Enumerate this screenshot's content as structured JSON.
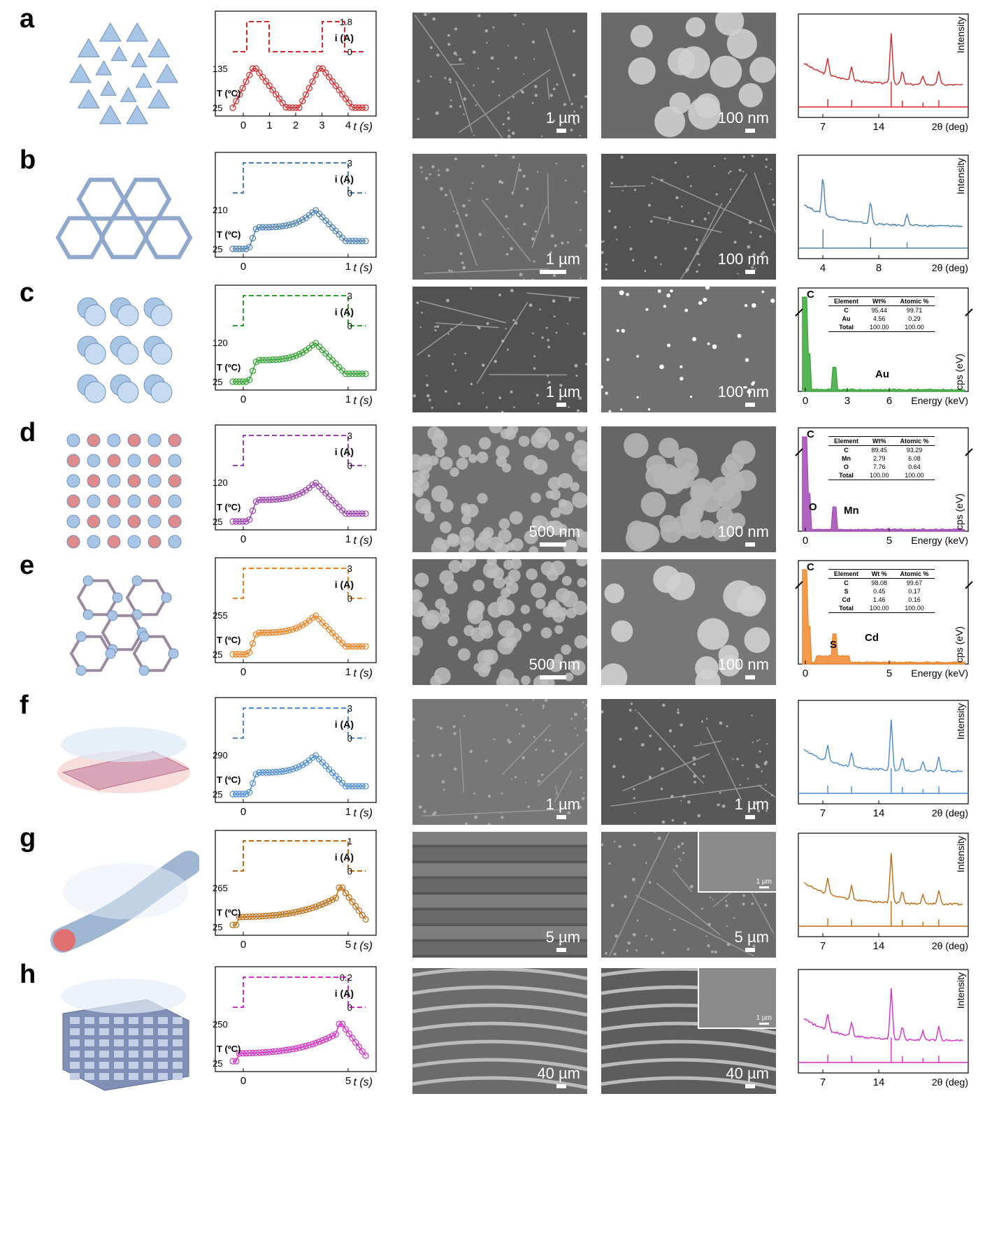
{
  "panels": [
    {
      "letter": "a",
      "color": "#d62728",
      "plot": {
        "i_max": "1.8",
        "i_zero": "0",
        "t_max": "135",
        "t_min": "25",
        "x_ticks": [
          "0",
          "1",
          "2",
          "3",
          "4"
        ],
        "x_label": "t (s)",
        "i_label": "i (A)",
        "t_label": "T (ºC)"
      },
      "sem1": {
        "scale": "1 µm"
      },
      "sem2": {
        "scale": "100 nm"
      },
      "spec": {
        "type": "xrd",
        "y_label": "Intensity",
        "x_ticks": [
          "7",
          "14"
        ],
        "x_label": "2θ (deg)"
      }
    },
    {
      "letter": "b",
      "color": "#4a7fb5",
      "plot": {
        "i_max": "3",
        "i_zero": "0",
        "t_max": "210",
        "t_min": "25",
        "x_ticks": [
          "0",
          "1"
        ],
        "x_label": "t (s)",
        "i_label": "i (A)",
        "t_label": "T (ºC)"
      },
      "sem1": {
        "scale": "1 µm"
      },
      "sem2": {
        "scale": "100 nm"
      },
      "spec": {
        "type": "xrd",
        "y_label": "Intensity",
        "x_ticks": [
          "4",
          "8"
        ],
        "x_label": "2θ (deg)"
      }
    },
    {
      "letter": "c",
      "color": "#2ca02c",
      "plot": {
        "i_max": "3",
        "i_zero": "0",
        "t_max": "120",
        "t_min": "25",
        "x_ticks": [
          "0",
          "1"
        ],
        "x_label": "t (s)",
        "i_label": "i (A)",
        "t_label": "T (ºC)"
      },
      "sem1": {
        "scale": "1 µm"
      },
      "sem2": {
        "scale": "100 nm"
      },
      "spec": {
        "type": "eds",
        "y_label": "cps (eV)",
        "x_ticks": [
          "0",
          "3",
          "6"
        ],
        "x_label": "Energy (keV)",
        "peak_labels": [
          "C",
          "Au"
        ],
        "table": {
          "headers": [
            "Element",
            "Wt%",
            "Atomic %"
          ],
          "rows": [
            [
              "C",
              "95.44",
              "99.71"
            ],
            [
              "Au",
              "4.56",
              "0.29"
            ],
            [
              "Total",
              "100.00",
              "100.00"
            ]
          ]
        }
      }
    },
    {
      "letter": "d",
      "color": "#9b3fb0",
      "plot": {
        "i_max": "3",
        "i_zero": "0",
        "t_max": "120",
        "t_min": "25",
        "x_ticks": [
          "0",
          "1"
        ],
        "x_label": "t (s)",
        "i_label": "i (A)",
        "t_label": "T (ºC)"
      },
      "sem1": {
        "scale": "500 nm"
      },
      "sem2": {
        "scale": "100 nm"
      },
      "spec": {
        "type": "eds",
        "y_label": "cps (eV)",
        "x_ticks": [
          "0",
          "5"
        ],
        "x_label": "Energy (keV)",
        "peak_labels": [
          "C",
          "O",
          "Mn"
        ],
        "table": {
          "headers": [
            "Element",
            "Wt%",
            "Atomic %"
          ],
          "rows": [
            [
              "C",
              "89.45",
              "93.29"
            ],
            [
              "Mn",
              "2.79",
              "6.08"
            ],
            [
              "O",
              "7.76",
              "0.64"
            ],
            [
              "Total",
              "100.00",
              "100.00"
            ]
          ]
        }
      }
    },
    {
      "letter": "e",
      "color": "#f07f1f",
      "plot": {
        "i_max": "3",
        "i_zero": "0",
        "t_max": "255",
        "t_min": "25",
        "x_ticks": [
          "0",
          "1"
        ],
        "x_label": "t (s)",
        "i_label": "i (A)",
        "t_label": "T (ºC)"
      },
      "sem1": {
        "scale": "500 nm"
      },
      "sem2": {
        "scale": "100 nm"
      },
      "spec": {
        "type": "eds",
        "y_label": "cps (eV)",
        "x_ticks": [
          "0",
          "5"
        ],
        "x_label": "Energy (keV)",
        "peak_labels": [
          "C",
          "S",
          "Cd"
        ],
        "table": {
          "headers": [
            "Element",
            "Wt %",
            "Atomic %"
          ],
          "rows": [
            [
              "C",
              "98.08",
              "99.67"
            ],
            [
              "S",
              "0.45",
              "0.17"
            ],
            [
              "Cd",
              "1.46",
              "0.16"
            ],
            [
              "Total",
              "100.00",
              "100.00"
            ]
          ]
        }
      }
    },
    {
      "letter": "f",
      "color": "#4a8ad8",
      "plot": {
        "i_max": "3",
        "i_zero": "0",
        "t_max": "290",
        "t_min": "25",
        "x_ticks": [
          "0",
          "1"
        ],
        "x_label": "t (s)",
        "i_label": "i (A)",
        "t_label": "T (ºC)"
      },
      "sem1": {
        "scale": "1 µm"
      },
      "sem2": {
        "scale": "1 µm"
      },
      "spec": {
        "type": "xrd",
        "y_label": "Intensity",
        "x_ticks": [
          "7",
          "14"
        ],
        "x_label": "2θ (deg)"
      }
    },
    {
      "letter": "g",
      "color": "#c06a10",
      "plot": {
        "i_max": "1",
        "i_zero": "0",
        "t_max": "265",
        "t_min": "25",
        "x_ticks": [
          "0",
          "5"
        ],
        "x_label": "t (s)",
        "i_label": "i (A)",
        "t_label": "T (ºC)"
      },
      "sem1": {
        "scale": "5 µm"
      },
      "sem2": {
        "scale": "5 µm",
        "inset_scale": "1 µm"
      },
      "spec": {
        "type": "xrd",
        "y_label": "Intensity",
        "x_ticks": [
          "7",
          "14"
        ],
        "x_label": "2θ (deg)"
      }
    },
    {
      "letter": "h",
      "color": "#d62cc8",
      "plot": {
        "i_max": "0.2",
        "i_zero": "0",
        "t_max": "250",
        "t_min": "25",
        "x_ticks": [
          "0",
          "5"
        ],
        "x_label": "t (s)",
        "i_label": "i (A)",
        "t_label": "T (ºC)"
      },
      "sem1": {
        "scale": "40 µm"
      },
      "sem2": {
        "scale": "40 µm",
        "inset_scale": "1 µm"
      },
      "spec": {
        "type": "xrd",
        "y_label": "Intensity",
        "x_ticks": [
          "7",
          "14"
        ],
        "x_label": "2θ (deg)"
      }
    }
  ]
}
